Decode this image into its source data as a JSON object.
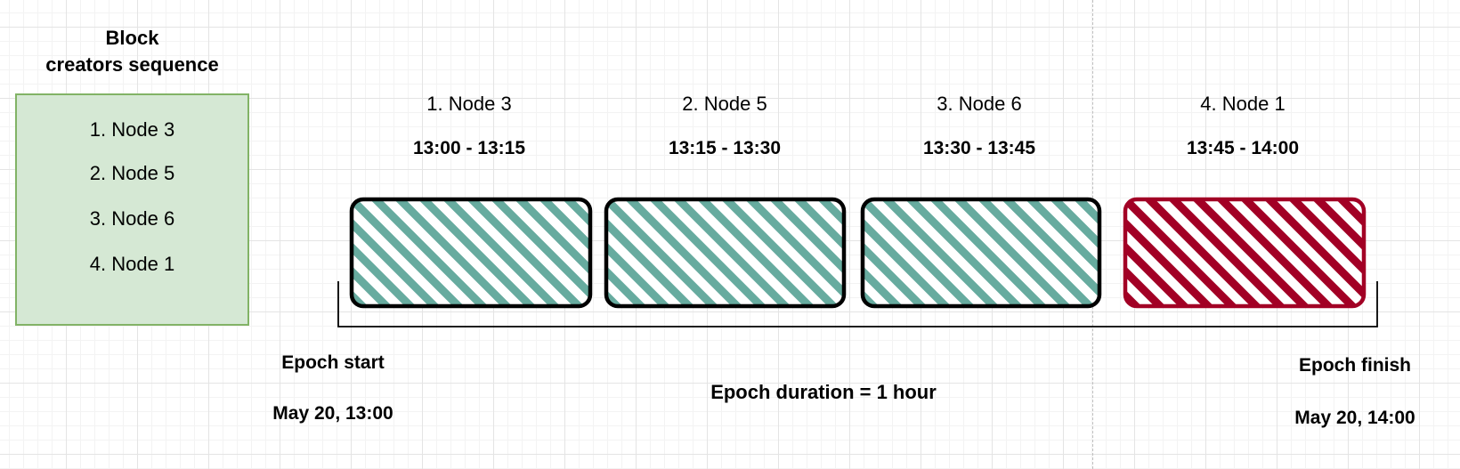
{
  "sequence_panel": {
    "title": "Block creators sequence",
    "title_line1": "Block",
    "title_line2": "creators sequence",
    "items": [
      "1. Node 3",
      "2. Node 5",
      "3. Node 6",
      "4. Node 1"
    ]
  },
  "slots": [
    {
      "label": "1. Node 3",
      "time": "13:00 - 13:15",
      "color": "#67ab9f"
    },
    {
      "label": "2. Node 5",
      "time": "13:15 - 13:30",
      "color": "#67ab9f"
    },
    {
      "label": "3. Node 6",
      "time": "13:30 - 13:45",
      "color": "#67ab9f"
    },
    {
      "label": "4. Node 1",
      "time": "13:45 - 14:00",
      "color": "#a20025"
    }
  ],
  "epoch": {
    "start_label": "Epoch start",
    "start_time": "May 20, 13:00",
    "duration_label": "Epoch duration = 1 hour",
    "finish_label": "Epoch finish",
    "finish_time": "May 20, 14:00"
  },
  "colors": {
    "sequence_fill": "#d5e8d4",
    "sequence_border": "#82b366",
    "slot_hatch_normal": "#67ab9f",
    "slot_hatch_highlight": "#a20025",
    "slot_outline": "#000000"
  }
}
